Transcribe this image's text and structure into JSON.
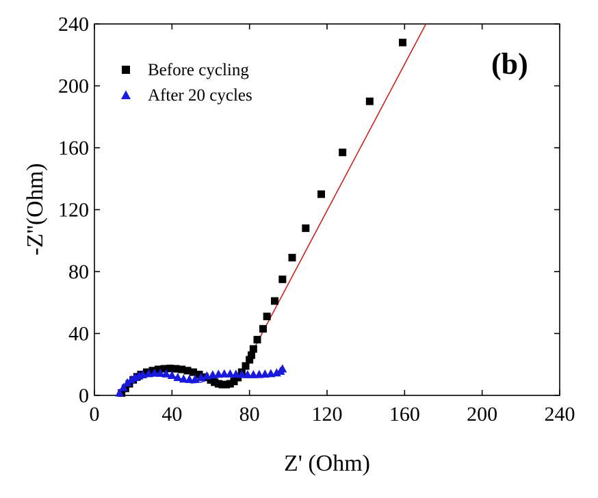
{
  "chart_data": {
    "type": "scatter",
    "title": "",
    "panel_label": "(b)",
    "xlabel": "Z' (Ohm)",
    "ylabel": "-Z''(Ohm)",
    "xlim": [
      0,
      240
    ],
    "ylim": [
      0,
      240
    ],
    "xticks": [
      0,
      40,
      80,
      120,
      160,
      200,
      240
    ],
    "yticks": [
      0,
      40,
      80,
      120,
      160,
      200,
      240
    ],
    "grid": false,
    "legend_position": "top-left",
    "series": [
      {
        "name": "Before cycling",
        "marker": "square",
        "color": "#000000",
        "x": [
          14,
          16,
          18,
          20,
          22,
          24,
          27,
          30,
          33,
          36,
          39,
          42,
          45,
          48,
          51,
          54,
          57,
          60,
          62,
          64,
          66,
          68,
          70,
          72,
          74,
          76,
          78,
          80,
          81,
          82,
          84,
          87,
          89,
          93,
          97,
          102,
          109,
          117,
          128,
          142,
          159
        ],
        "y": [
          1.5,
          4.5,
          7.5,
          10,
          12,
          13.5,
          15,
          16,
          16.8,
          17.2,
          17.4,
          17.2,
          16.8,
          16,
          15,
          13.5,
          11.8,
          10,
          8.5,
          7.5,
          7,
          7,
          7.5,
          9,
          11.5,
          15,
          19,
          23,
          26,
          30,
          36,
          43,
          51,
          61,
          75,
          89,
          108,
          130,
          157,
          190,
          228
        ]
      },
      {
        "name": "After 20 cycles",
        "marker": "triangle",
        "color": "#1a1adc",
        "x": [
          13,
          15,
          17,
          19,
          21,
          23,
          25,
          28,
          31,
          34,
          37,
          40,
          43,
          46,
          49,
          52,
          55,
          58,
          61,
          64,
          67,
          70,
          73,
          76,
          79,
          82,
          85,
          88,
          91,
          94,
          96,
          97
        ],
        "y": [
          1.5,
          5,
          8,
          10,
          11.5,
          12.5,
          13.3,
          14,
          14.3,
          14.2,
          13.8,
          12.8,
          11.5,
          10.5,
          10.2,
          10.5,
          11.5,
          12.5,
          13.2,
          13.6,
          13.8,
          13.8,
          13.6,
          13.4,
          13.3,
          13.3,
          13.4,
          13.7,
          14,
          14.5,
          15.5,
          17
        ]
      }
    ],
    "fit_lines": [
      {
        "color": "#cc1f1f",
        "x": [
          13,
          16,
          20,
          25,
          30,
          35,
          40,
          45,
          50,
          55,
          60,
          64,
          67,
          70,
          72,
          74,
          76,
          78,
          171
        ],
        "y": [
          1,
          6,
          10,
          13.5,
          15.5,
          16.8,
          17.2,
          16.6,
          14.8,
          12.2,
          9.2,
          7,
          6,
          6.2,
          8.5,
          12,
          16.5,
          20,
          240
        ]
      },
      {
        "color": "#2a2ad0",
        "x": [
          13,
          16,
          20,
          25,
          30,
          35,
          40,
          45,
          50,
          55,
          60,
          65,
          70,
          75,
          80,
          85,
          90,
          95
        ],
        "y": [
          1,
          6.5,
          10.5,
          13,
          14,
          13.8,
          12.8,
          10.6,
          8,
          8.5,
          10.5,
          12,
          12.8,
          13,
          12.8,
          12.6,
          12.8,
          13.5
        ]
      }
    ]
  }
}
